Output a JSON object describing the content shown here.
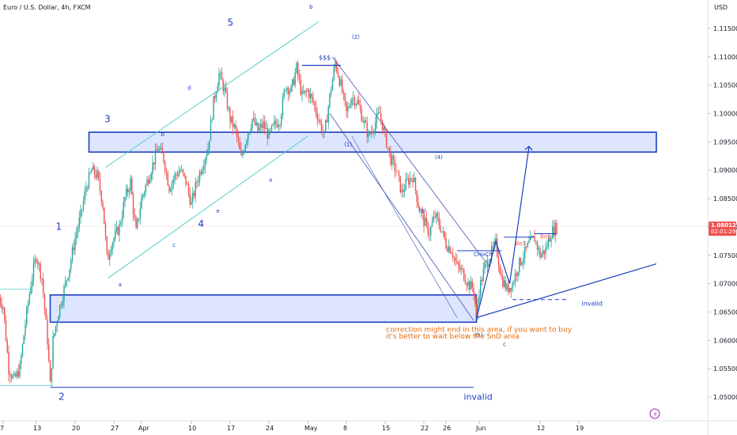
{
  "header": {
    "symbol": "Euro / U.S. Dollar, 4h, FXCM"
  },
  "colors": {
    "up": "#26a69a",
    "down": "#ef5350",
    "blue": "#1a3fbf",
    "zone_fill": "#d7e1ff",
    "orange": "#e86a0c",
    "price_tag": "#ef5350"
  },
  "chart_data": {
    "type": "candlestick",
    "title": "Euro / U.S. Dollar, 4h, FXCM",
    "currency": "USD",
    "ylim": [
      1.046,
      1.119
    ],
    "y_ticks": [
      1.05,
      1.055,
      1.06,
      1.065,
      1.07,
      1.075,
      1.08,
      1.085,
      1.09,
      1.095,
      1.1,
      1.105,
      1.11,
      1.115
    ],
    "y_tick_labels": [
      "1.05000",
      "1.05500",
      "1.06000",
      "1.06500",
      "1.07000",
      "1.07500",
      "1.08000",
      "1.08500",
      "1.09000",
      "1.09500",
      "1.10000",
      "1.10500",
      "1.11000",
      "1.11500"
    ],
    "x_ticks": [
      {
        "label": "7",
        "day": 7
      },
      {
        "label": "13",
        "day": 13
      },
      {
        "label": "20",
        "day": 20
      },
      {
        "label": "27",
        "day": 27
      },
      {
        "label": "Apr",
        "day": 32
      },
      {
        "label": "10",
        "day": 41
      },
      {
        "label": "17",
        "day": 48
      },
      {
        "label": "24",
        "day": 55
      },
      {
        "label": "May",
        "day": 62
      },
      {
        "label": "8",
        "day": 69
      },
      {
        "label": "15",
        "day": 76
      },
      {
        "label": "22",
        "day": 83
      },
      {
        "label": "26",
        "day": 87
      },
      {
        "label": "Jun",
        "day": 93
      },
      {
        "label": "12",
        "day": 104
      },
      {
        "label": "19",
        "day": 111
      }
    ],
    "last_price": {
      "value": 1.08012,
      "label": "1.08012",
      "countdown": "02:01:29"
    },
    "price_path": [
      [
        6,
        1.068
      ],
      [
        7,
        1.066
      ],
      [
        8,
        1.055
      ],
      [
        9,
        1.053
      ],
      [
        10,
        1.055
      ],
      [
        11,
        1.063
      ],
      [
        12,
        1.07
      ],
      [
        13,
        1.075
      ],
      [
        14,
        1.071
      ],
      [
        15,
        1.06
      ],
      [
        15.5,
        1.052
      ],
      [
        16,
        1.06
      ],
      [
        17,
        1.065
      ],
      [
        18,
        1.069
      ],
      [
        19,
        1.073
      ],
      [
        20,
        1.078
      ],
      [
        21,
        1.082
      ],
      [
        22,
        1.087
      ],
      [
        23,
        1.09
      ],
      [
        24,
        1.089
      ],
      [
        25,
        1.084
      ],
      [
        25.8,
        1.074
      ],
      [
        26.5,
        1.077
      ],
      [
        28,
        1.08
      ],
      [
        29,
        1.085
      ],
      [
        30,
        1.088
      ],
      [
        30.5,
        1.083
      ],
      [
        31,
        1.079
      ],
      [
        32,
        1.085
      ],
      [
        33,
        1.088
      ],
      [
        34,
        1.091
      ],
      [
        35,
        1.094
      ],
      [
        36,
        1.092
      ],
      [
        37,
        1.087
      ],
      [
        38,
        1.089
      ],
      [
        39,
        1.09
      ],
      [
        40,
        1.088
      ],
      [
        41,
        1.084
      ],
      [
        42,
        1.088
      ],
      [
        43,
        1.091
      ],
      [
        44,
        1.094
      ],
      [
        45,
        1.102
      ],
      [
        46,
        1.107
      ],
      [
        47,
        1.104
      ],
      [
        48,
        1.099
      ],
      [
        49,
        1.097
      ],
      [
        50,
        1.092
      ],
      [
        51,
        1.096
      ],
      [
        52,
        1.099
      ],
      [
        53,
        1.097
      ],
      [
        54,
        1.098
      ],
      [
        55,
        1.096
      ],
      [
        56,
        1.098
      ],
      [
        57,
        1.099
      ],
      [
        58,
        1.105
      ],
      [
        59,
        1.104
      ],
      [
        60,
        1.108
      ],
      [
        61,
        1.103
      ],
      [
        62,
        1.104
      ],
      [
        63,
        1.102
      ],
      [
        64,
        1.099
      ],
      [
        65,
        1.096
      ],
      [
        66,
        1.103
      ],
      [
        67,
        1.109
      ],
      [
        68,
        1.105
      ],
      [
        69,
        1.1
      ],
      [
        70,
        1.103
      ],
      [
        71,
        1.102
      ],
      [
        72,
        1.099
      ],
      [
        73,
        1.096
      ],
      [
        74,
        1.098
      ],
      [
        75,
        1.1
      ],
      [
        76,
        1.096
      ],
      [
        77,
        1.092
      ],
      [
        78,
        1.09
      ],
      [
        79,
        1.086
      ],
      [
        80,
        1.088
      ],
      [
        81,
        1.089
      ],
      [
        82,
        1.084
      ],
      [
        83,
        1.081
      ],
      [
        84,
        1.079
      ],
      [
        85,
        1.082
      ],
      [
        86,
        1.08
      ],
      [
        87,
        1.077
      ],
      [
        88,
        1.076
      ],
      [
        89,
        1.073
      ],
      [
        90,
        1.072
      ],
      [
        91,
        1.07
      ],
      [
        92,
        1.069
      ],
      [
        92.5,
        1.064
      ],
      [
        93,
        1.069
      ],
      [
        94,
        1.073
      ],
      [
        95,
        1.075
      ],
      [
        96,
        1.077
      ],
      [
        97,
        1.071
      ],
      [
        98,
        1.069
      ],
      [
        99,
        1.07
      ],
      [
        100,
        1.073
      ],
      [
        101,
        1.075
      ],
      [
        102,
        1.077
      ],
      [
        103,
        1.078
      ],
      [
        104,
        1.075
      ],
      [
        105,
        1.076
      ],
      [
        106,
        1.079
      ],
      [
        107,
        1.08
      ]
    ],
    "zones": [
      {
        "name": "supply-zone",
        "from_day": 22.5,
        "to_day": 125,
        "low": 1.0932,
        "high": 1.0967
      },
      {
        "name": "demand-zone",
        "from_day": 15.5,
        "to_day": 92.5,
        "low": 1.0632,
        "high": 1.068
      }
    ],
    "annotations": {
      "waves": [
        "1",
        "2",
        "3",
        "4",
        "5"
      ],
      "sub_waves": [
        "a",
        "b",
        "c",
        "d",
        "e",
        "a",
        "b",
        "c",
        "a"
      ],
      "count_labels": [
        "(1)",
        "(2)",
        "(3)",
        "(4)",
        "(5)"
      ],
      "sss": "$$$",
      "choch": "CHoCh",
      "bos1": "BoS",
      "bos2": "BoS",
      "invalid_low": "invalid",
      "invalid_right": "invalid",
      "note_line1": "correction might end in this area, if you want to buy",
      "note_line2": "it's better to wait below the SnD area"
    },
    "grid": false,
    "legend": "none"
  }
}
